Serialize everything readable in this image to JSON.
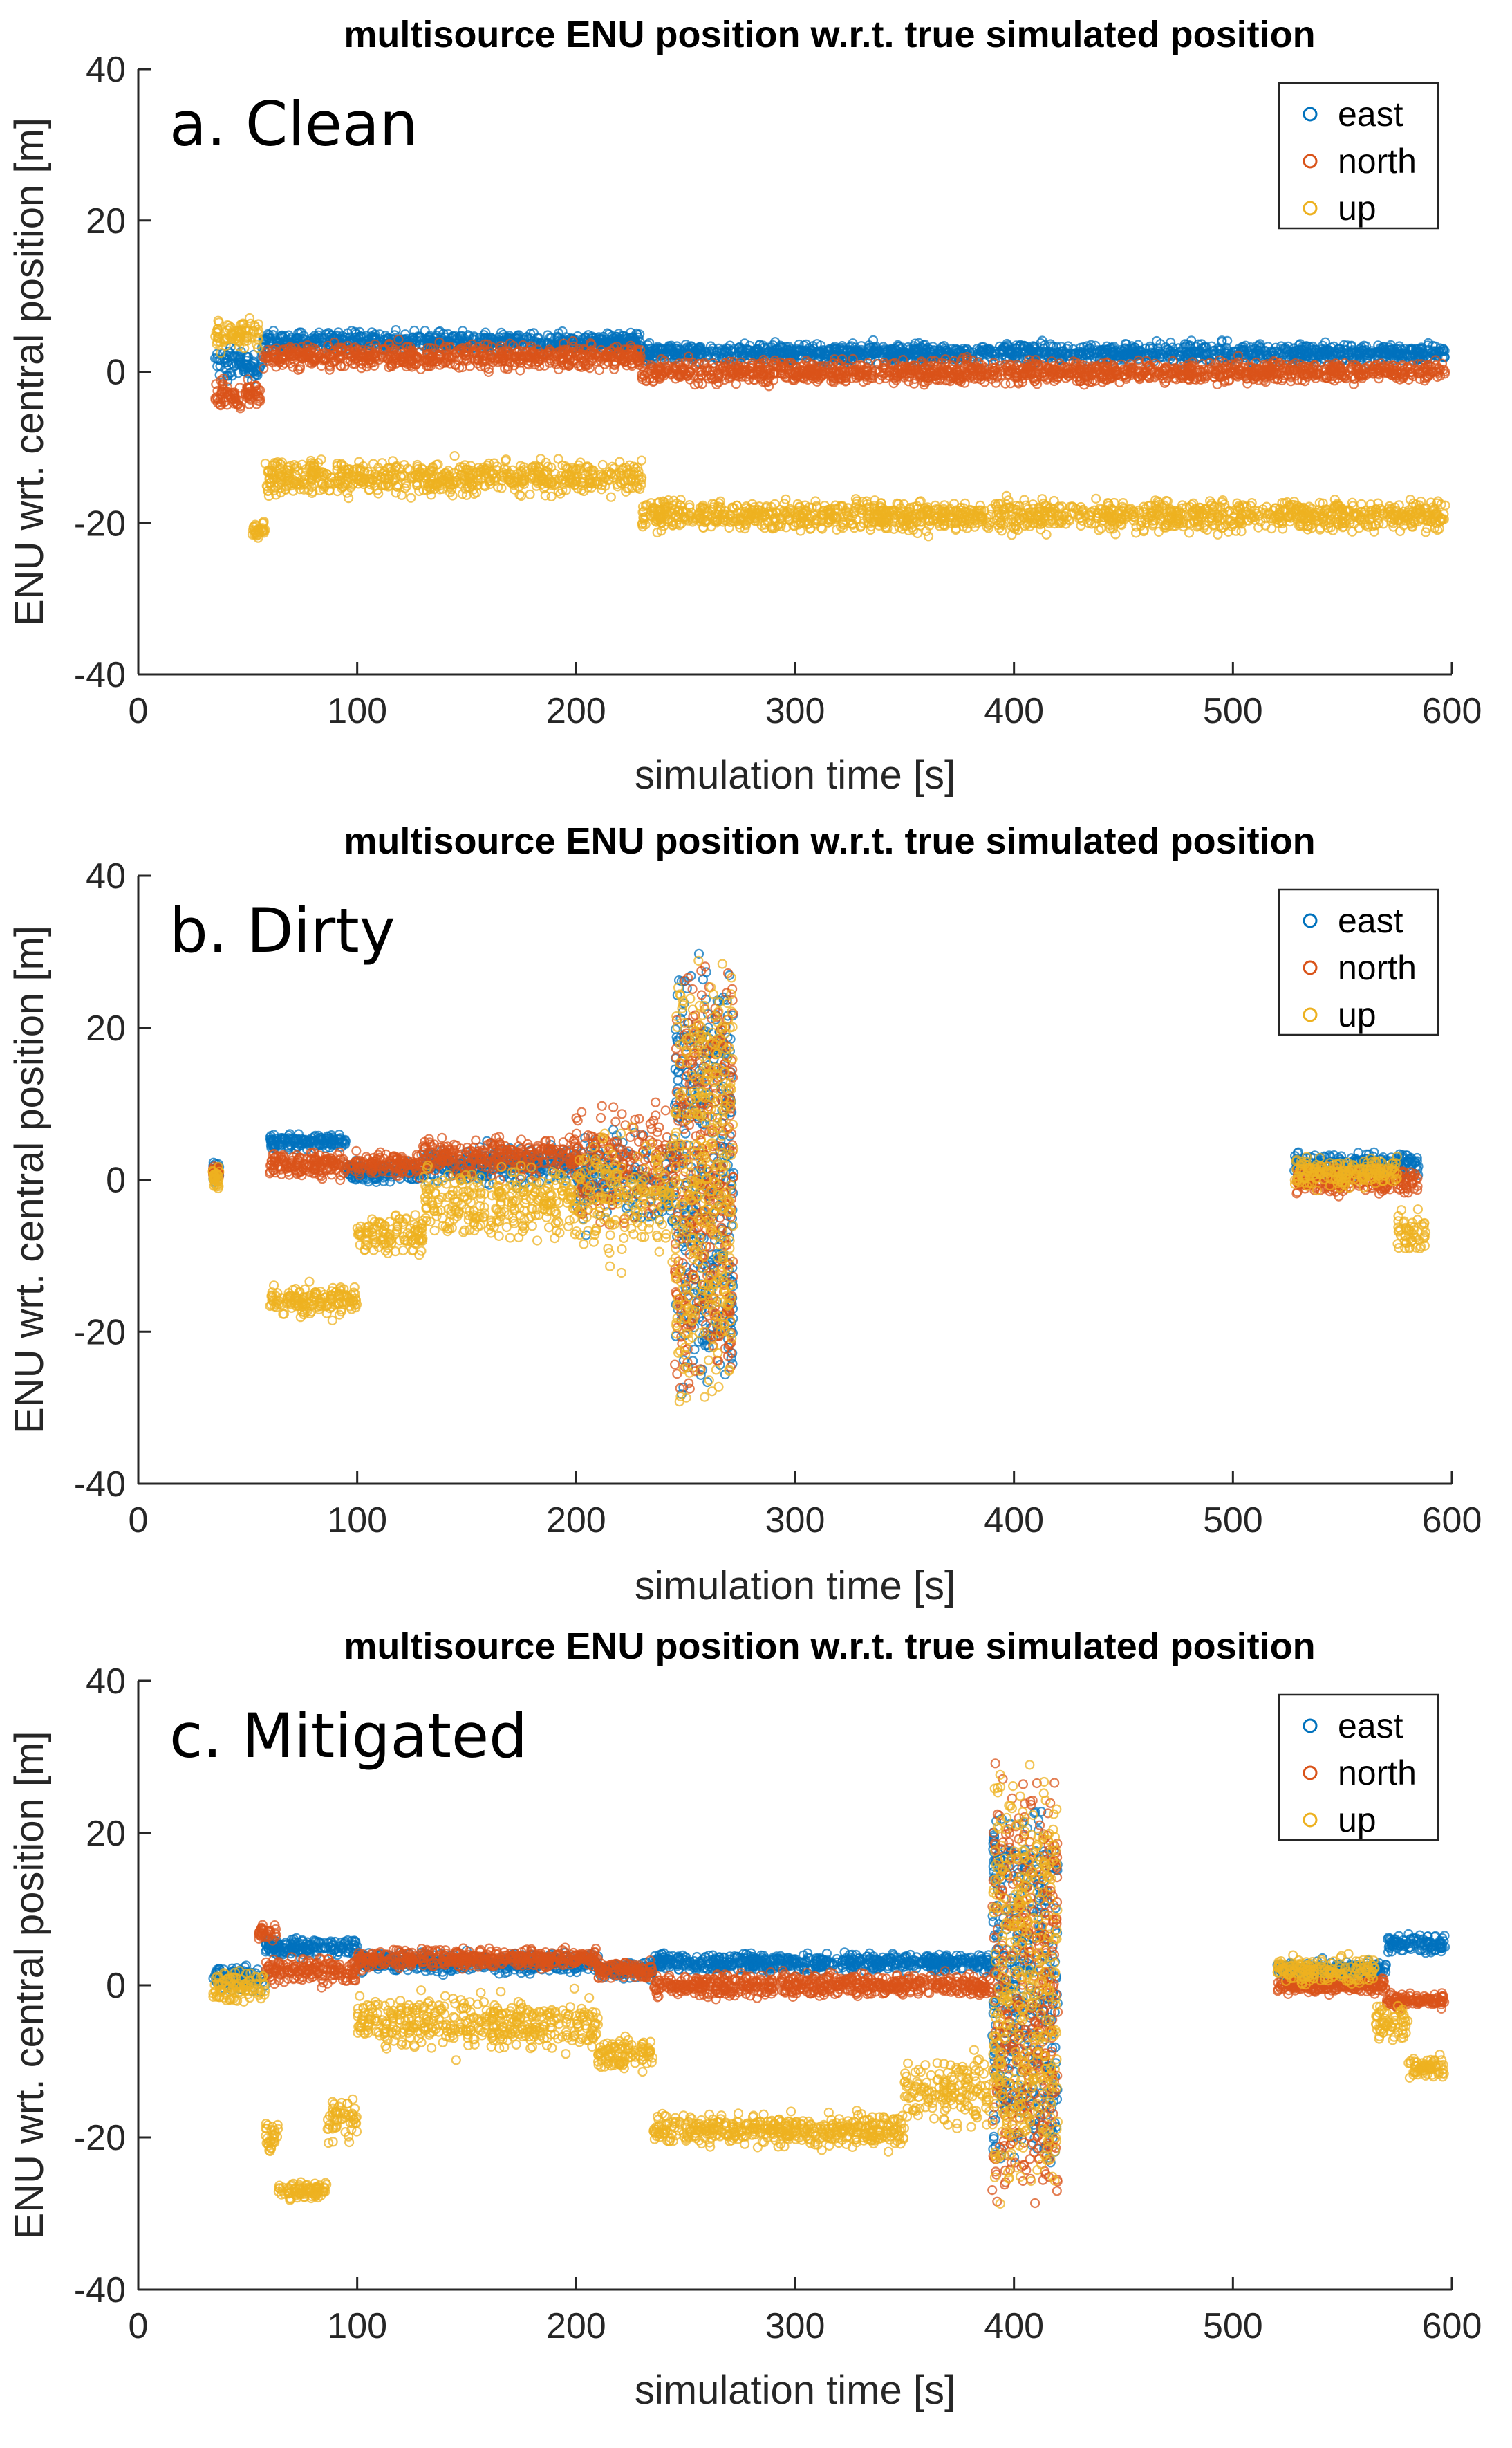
{
  "colors": {
    "east": "#0072BD",
    "north": "#D95319",
    "up": "#EDB120"
  },
  "chart_data": [
    {
      "type": "scatter",
      "panel_label": "a. Clean",
      "title": "multisource ENU position w.r.t. true simulated position",
      "xlabel": "simulation time [s]",
      "ylabel": "ENU wrt. central position [m]",
      "xlim": [
        0,
        600
      ],
      "ylim": [
        -40,
        40
      ],
      "xticks": [
        0,
        100,
        200,
        300,
        400,
        500,
        600
      ],
      "yticks": [
        -40,
        -20,
        0,
        20,
        40
      ],
      "legend": [
        "east",
        "north",
        "up"
      ],
      "legend_position": "top-right",
      "series": [
        {
          "name": "east",
          "segments": [
            {
              "x0": 35,
              "x1": 57,
              "y": 1,
              "spread": 2.5
            },
            {
              "x0": 57,
              "x1": 230,
              "y": 4,
              "spread": 1.5
            },
            {
              "x0": 230,
              "x1": 597,
              "y": 2.5,
              "spread": 1.5
            }
          ]
        },
        {
          "name": "north",
          "segments": [
            {
              "x0": 35,
              "x1": 57,
              "y": -3,
              "spread": 2.5
            },
            {
              "x0": 57,
              "x1": 230,
              "y": 2,
              "spread": 2.0
            },
            {
              "x0": 230,
              "x1": 597,
              "y": 0,
              "spread": 1.8
            }
          ]
        },
        {
          "name": "up",
          "segments": [
            {
              "x0": 35,
              "x1": 55,
              "y": 5,
              "spread": 2.5
            },
            {
              "x0": 52,
              "x1": 58,
              "y": -21,
              "spread": 1.5
            },
            {
              "x0": 58,
              "x1": 230,
              "y": -14,
              "spread": 2.8
            },
            {
              "x0": 230,
              "x1": 597,
              "y": -19,
              "spread": 2.5
            }
          ]
        }
      ]
    },
    {
      "type": "scatter",
      "panel_label": "b. Dirty",
      "title": "multisource ENU position w.r.t. true simulated position",
      "xlabel": "simulation time [s]",
      "ylabel": "ENU wrt. central position [m]",
      "xlim": [
        0,
        600
      ],
      "ylim": [
        -40,
        40
      ],
      "xticks": [
        0,
        100,
        200,
        300,
        400,
        500,
        600
      ],
      "yticks": [
        -40,
        -20,
        0,
        20,
        40
      ],
      "legend": [
        "east",
        "north",
        "up"
      ],
      "legend_position": "top-right",
      "series": [
        {
          "name": "east",
          "segments": [
            {
              "x0": 34,
              "x1": 37,
              "y": 1,
              "spread": 1.5
            },
            {
              "x0": 60,
              "x1": 95,
              "y": 5,
              "spread": 1.2
            },
            {
              "x0": 95,
              "x1": 130,
              "y": 1,
              "spread": 1.5
            },
            {
              "x0": 130,
              "x1": 200,
              "y": 2,
              "spread": 3
            },
            {
              "x0": 200,
              "x1": 245,
              "y": 0,
              "spread": 8
            },
            {
              "x0": 245,
              "x1": 272,
              "y": 0,
              "spread": 30
            },
            {
              "x0": 528,
              "x1": 585,
              "y": 2,
              "spread": 2
            }
          ]
        },
        {
          "name": "north",
          "segments": [
            {
              "x0": 34,
              "x1": 37,
              "y": 1,
              "spread": 1.5
            },
            {
              "x0": 60,
              "x1": 130,
              "y": 2,
              "spread": 2
            },
            {
              "x0": 130,
              "x1": 200,
              "y": 3,
              "spread": 3
            },
            {
              "x0": 200,
              "x1": 245,
              "y": 2,
              "spread": 9
            },
            {
              "x0": 245,
              "x1": 272,
              "y": 0,
              "spread": 30
            },
            {
              "x0": 528,
              "x1": 585,
              "y": 0,
              "spread": 2
            }
          ]
        },
        {
          "name": "up",
          "segments": [
            {
              "x0": 34,
              "x1": 37,
              "y": 0,
              "spread": 2
            },
            {
              "x0": 60,
              "x1": 100,
              "y": -16,
              "spread": 2.5
            },
            {
              "x0": 100,
              "x1": 130,
              "y": -7,
              "spread": 3.5
            },
            {
              "x0": 130,
              "x1": 200,
              "y": -3,
              "spread": 6
            },
            {
              "x0": 200,
              "x1": 245,
              "y": -2,
              "spread": 10
            },
            {
              "x0": 245,
              "x1": 272,
              "y": 0,
              "spread": 30
            },
            {
              "x0": 528,
              "x1": 575,
              "y": 1,
              "spread": 2.5
            },
            {
              "x0": 575,
              "x1": 588,
              "y": -7,
              "spread": 3.5
            }
          ]
        }
      ]
    },
    {
      "type": "scatter",
      "panel_label": "c. Mitigated",
      "title": "multisource ENU position w.r.t. true simulated position",
      "xlabel": "simulation time [s]",
      "ylabel": "ENU wrt. central position [m]",
      "xlim": [
        0,
        600
      ],
      "ylim": [
        -40,
        40
      ],
      "xticks": [
        0,
        100,
        200,
        300,
        400,
        500,
        600
      ],
      "yticks": [
        -40,
        -20,
        0,
        20,
        40
      ],
      "legend": [
        "east",
        "north",
        "up"
      ],
      "legend_position": "top-right",
      "series": [
        {
          "name": "east",
          "segments": [
            {
              "x0": 34,
              "x1": 58,
              "y": 1,
              "spread": 2
            },
            {
              "x0": 58,
              "x1": 100,
              "y": 5,
              "spread": 1.5
            },
            {
              "x0": 100,
              "x1": 210,
              "y": 3,
              "spread": 1.5
            },
            {
              "x0": 210,
              "x1": 235,
              "y": 2,
              "spread": 1.5
            },
            {
              "x0": 235,
              "x1": 390,
              "y": 3,
              "spread": 1.5
            },
            {
              "x0": 390,
              "x1": 420,
              "y": 0,
              "spread": 25
            },
            {
              "x0": 520,
              "x1": 570,
              "y": 2,
              "spread": 1.5
            },
            {
              "x0": 570,
              "x1": 597,
              "y": 5.5,
              "spread": 1.5
            }
          ]
        },
        {
          "name": "north",
          "segments": [
            {
              "x0": 55,
              "x1": 63,
              "y": 7,
              "spread": 2
            },
            {
              "x0": 58,
              "x1": 100,
              "y": 2,
              "spread": 2
            },
            {
              "x0": 100,
              "x1": 210,
              "y": 3.5,
              "spread": 1.5
            },
            {
              "x0": 210,
              "x1": 235,
              "y": 2,
              "spread": 1.5
            },
            {
              "x0": 235,
              "x1": 390,
              "y": 0,
              "spread": 1.8
            },
            {
              "x0": 390,
              "x1": 420,
              "y": 0,
              "spread": 30
            },
            {
              "x0": 520,
              "x1": 570,
              "y": 0,
              "spread": 1.2
            },
            {
              "x0": 570,
              "x1": 597,
              "y": -2,
              "spread": 1.2
            }
          ]
        },
        {
          "name": "up",
          "segments": [
            {
              "x0": 34,
              "x1": 58,
              "y": 0,
              "spread": 2.5
            },
            {
              "x0": 58,
              "x1": 64,
              "y": -20,
              "spread": 3
            },
            {
              "x0": 64,
              "x1": 86,
              "y": -27,
              "spread": 1.5
            },
            {
              "x0": 86,
              "x1": 100,
              "y": -18,
              "spread": 4
            },
            {
              "x0": 100,
              "x1": 210,
              "y": -5,
              "spread": 4
            },
            {
              "x0": 210,
              "x1": 235,
              "y": -9,
              "spread": 2.5
            },
            {
              "x0": 235,
              "x1": 350,
              "y": -19,
              "spread": 2.5
            },
            {
              "x0": 350,
              "x1": 390,
              "y": -14,
              "spread": 5
            },
            {
              "x0": 390,
              "x1": 420,
              "y": 0,
              "spread": 30
            },
            {
              "x0": 520,
              "x1": 565,
              "y": 2,
              "spread": 2
            },
            {
              "x0": 565,
              "x1": 580,
              "y": -5,
              "spread": 3
            },
            {
              "x0": 580,
              "x1": 597,
              "y": -11,
              "spread": 2
            }
          ]
        }
      ]
    }
  ]
}
